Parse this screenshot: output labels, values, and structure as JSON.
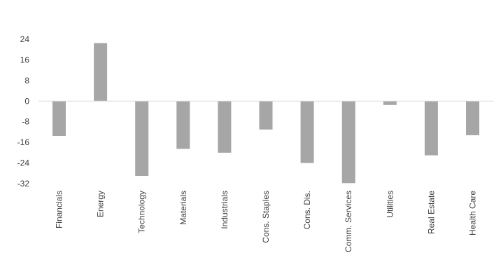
{
  "chart_data": {
    "type": "bar",
    "categories": [
      "Financials",
      "Energy",
      "Technology",
      "Materials",
      "Industrials",
      "Cons. Staples",
      "Cons. Dis.",
      "Comm. Services",
      "Utilities",
      "Real Estate",
      "Health Care"
    ],
    "values": [
      -13.5,
      22.5,
      -29,
      -18.5,
      -20,
      -11,
      -24,
      -31.8,
      -1.5,
      -21,
      -13.2
    ],
    "yticks": [
      24,
      16,
      8,
      0,
      -8,
      -16,
      -24,
      -32
    ],
    "ylim": [
      -32,
      24
    ],
    "grid": false,
    "bar_color": "#a6a6a6",
    "axis_color": "#d9d9d9",
    "title": "",
    "xlabel": "",
    "ylabel": ""
  }
}
